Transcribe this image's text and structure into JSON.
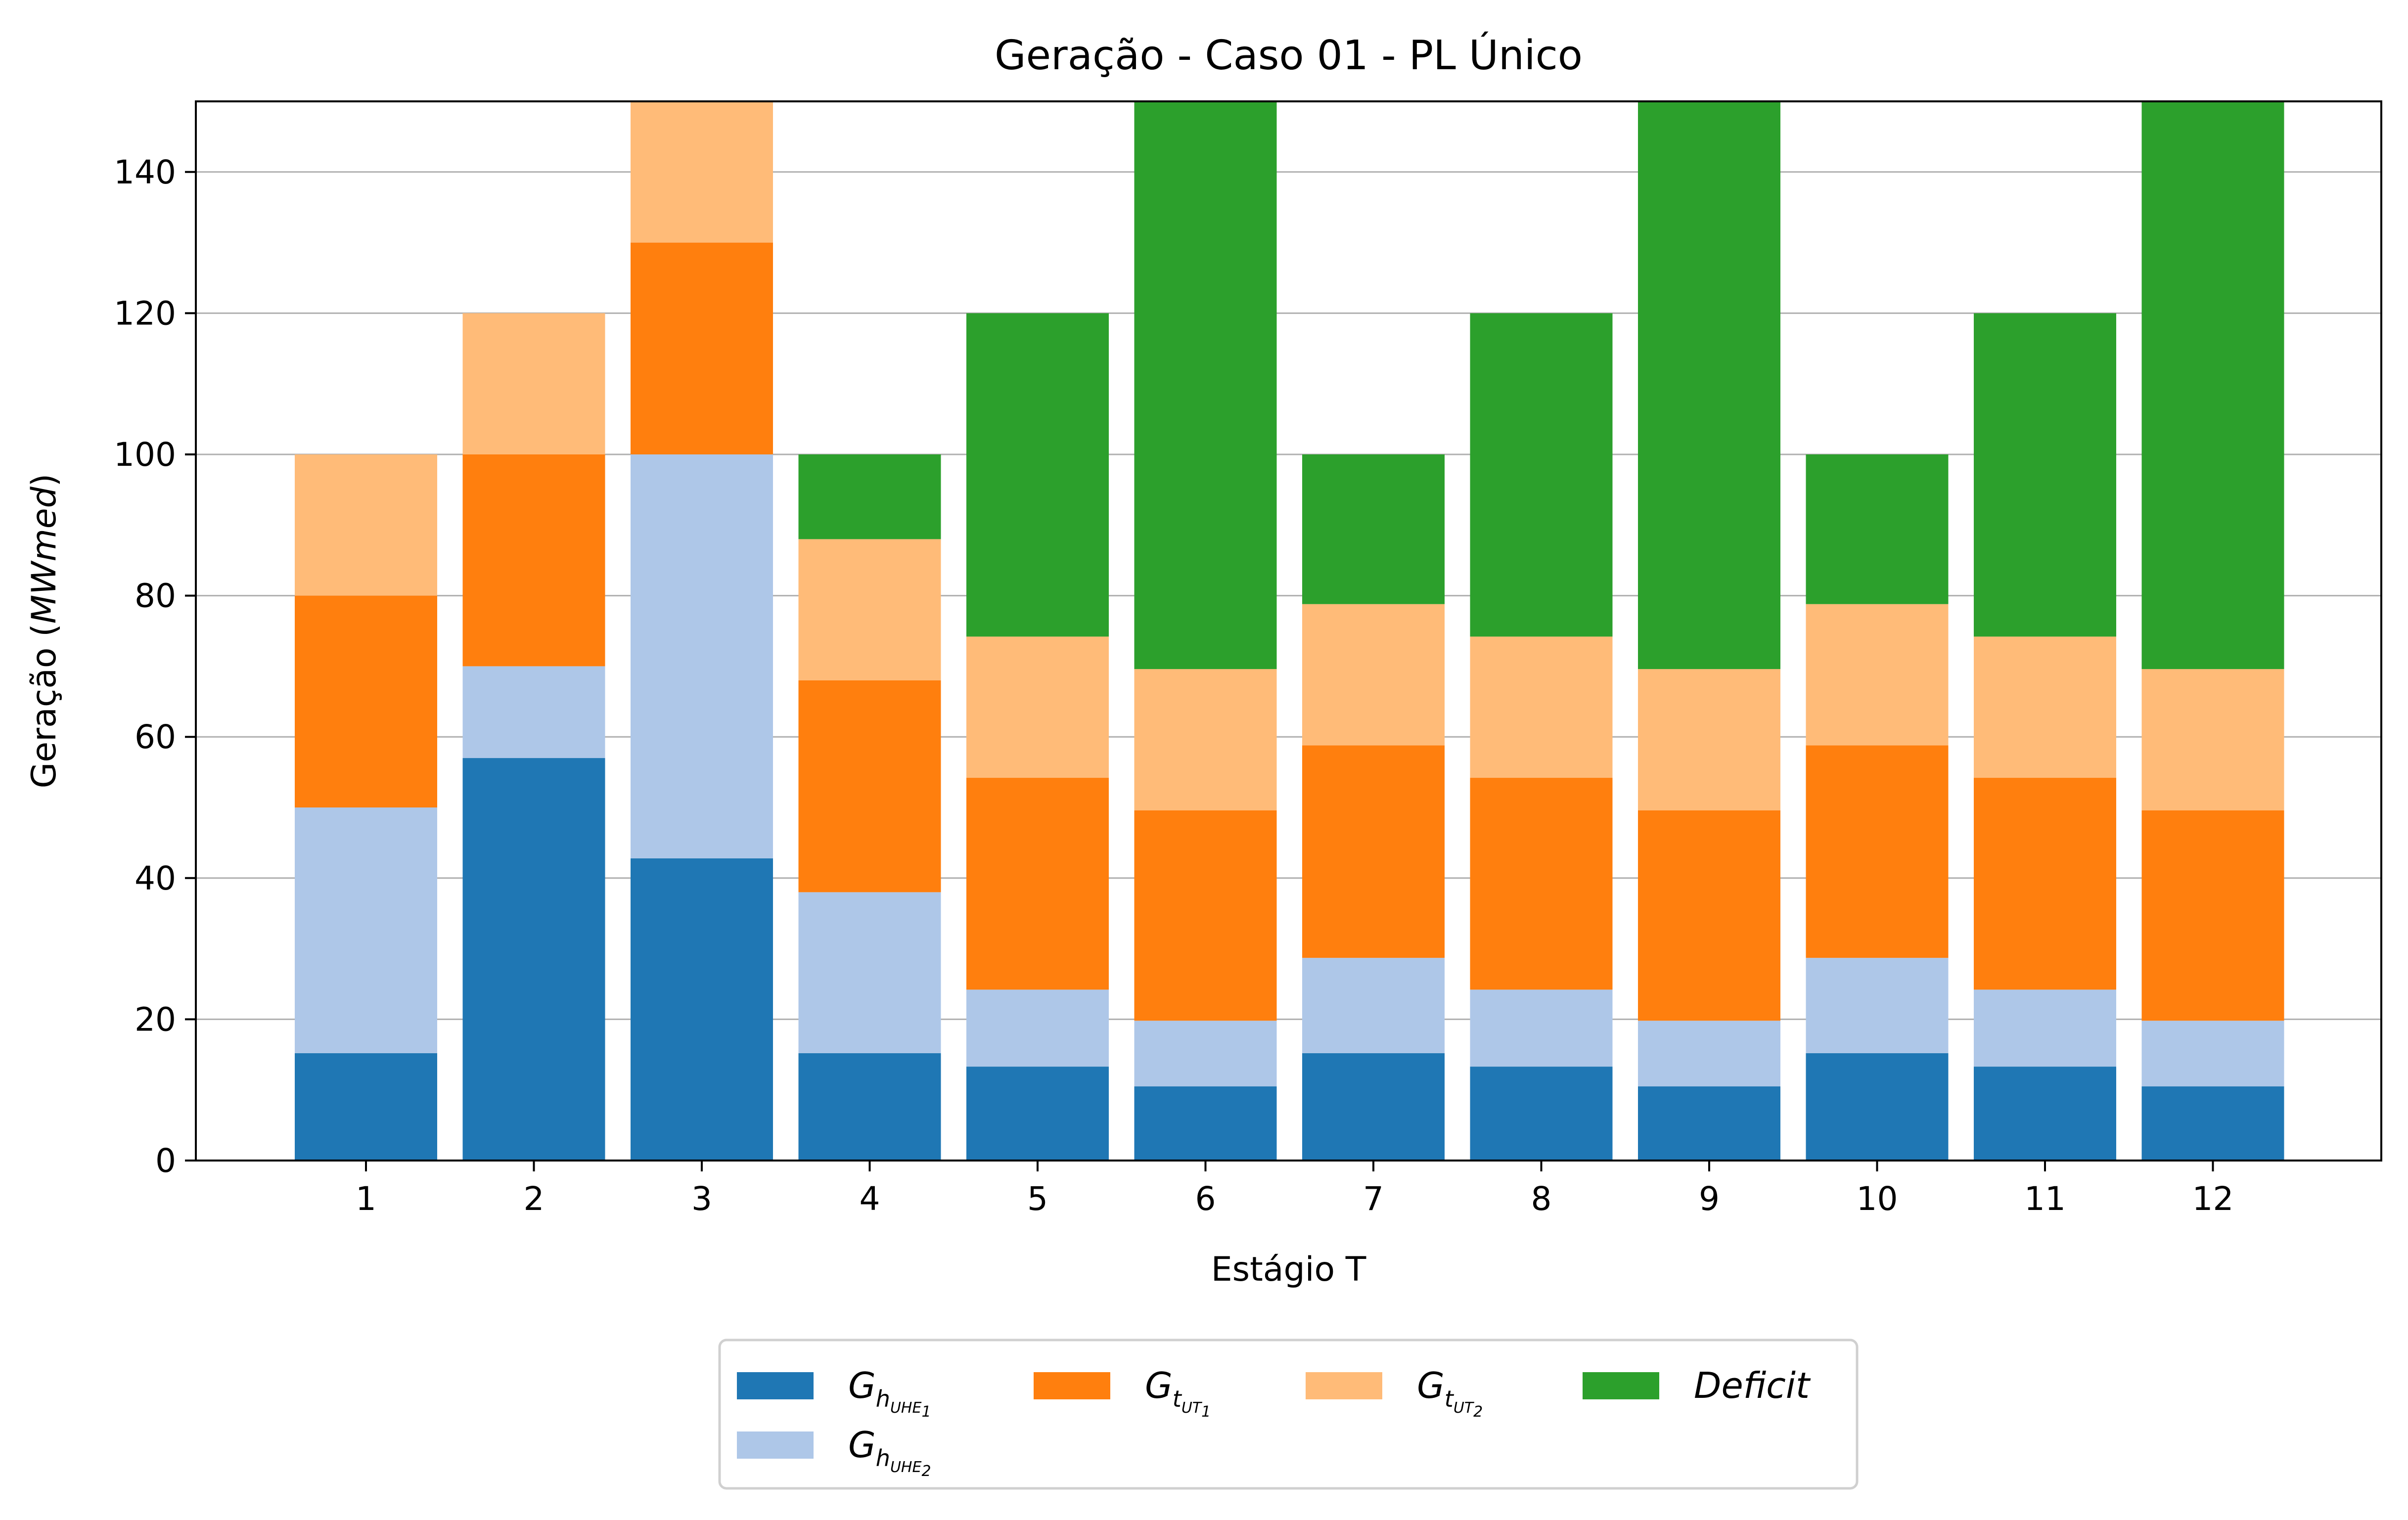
{
  "chart_data": {
    "type": "bar",
    "stacked": true,
    "title": "Geração - Caso 01 - PL Único",
    "xlabel": "Estágio T",
    "ylabel": "Geração (MWmed)",
    "ylabel_parts": {
      "prefix": "Geração (",
      "unit": "MWmed",
      "suffix": ")"
    },
    "ylim": [
      0,
      150
    ],
    "yticks": [
      0,
      20,
      40,
      60,
      80,
      100,
      120,
      140
    ],
    "grid": "y",
    "legend_position": "bottom-center",
    "categories": [
      "1",
      "2",
      "3",
      "4",
      "5",
      "6",
      "7",
      "8",
      "9",
      "10",
      "11",
      "12"
    ],
    "series": [
      {
        "key": "GhUHE1",
        "name": "G_h_UHE_1",
        "label": {
          "main": "G",
          "sub": "h",
          "subsub": "UHE",
          "subsubsub": "1"
        },
        "color": "#1f77b4",
        "values": [
          15.2,
          57.0,
          42.8,
          15.2,
          13.3,
          10.5,
          15.2,
          13.3,
          10.5,
          15.2,
          13.3,
          10.5
        ]
      },
      {
        "key": "GhUHE2",
        "name": "G_h_UHE_2",
        "label": {
          "main": "G",
          "sub": "h",
          "subsub": "UHE",
          "subsubsub": "2"
        },
        "color": "#aec7e8",
        "values": [
          34.8,
          13.0,
          57.2,
          22.8,
          10.9,
          9.3,
          13.5,
          10.9,
          9.3,
          13.5,
          10.9,
          9.3
        ]
      },
      {
        "key": "GtUT1",
        "name": "G_t_UT_1",
        "label": {
          "main": "G",
          "sub": "t",
          "subsub": "UT",
          "subsubsub": "1"
        },
        "color": "#ff7f0e",
        "values": [
          30.0,
          30.0,
          30.0,
          30.0,
          30.0,
          29.8,
          30.1,
          30.0,
          29.8,
          30.1,
          30.0,
          29.8
        ]
      },
      {
        "key": "GtUT2",
        "name": "G_t_UT_2",
        "label": {
          "main": "G",
          "sub": "t",
          "subsub": "UT",
          "subsubsub": "2"
        },
        "color": "#ffbb78",
        "values": [
          20.0,
          20.0,
          20.0,
          20.0,
          20.0,
          20.0,
          20.0,
          20.0,
          20.0,
          20.0,
          20.0,
          20.0
        ]
      },
      {
        "key": "Deficit",
        "name": "Deficit",
        "label": {
          "main": "Deficit"
        },
        "color": "#2ca02c",
        "values": [
          0,
          0,
          0,
          12.0,
          45.8,
          80.4,
          21.2,
          45.8,
          80.4,
          21.2,
          45.8,
          80.4
        ]
      }
    ]
  }
}
